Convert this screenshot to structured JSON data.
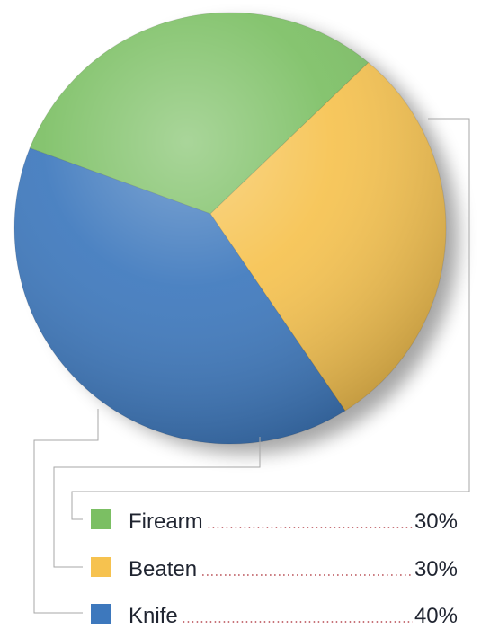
{
  "chart_data": {
    "type": "pie",
    "title": "",
    "slices": [
      {
        "label": "Firearm",
        "value": 30,
        "display": "30%",
        "color": "#7bbf63"
      },
      {
        "label": "Beaten",
        "value": 30,
        "display": "30%",
        "color": "#f6c24f"
      },
      {
        "label": "Knife",
        "value": 40,
        "display": "40%",
        "color": "#3d78bd"
      }
    ],
    "legend_position": "bottom"
  }
}
